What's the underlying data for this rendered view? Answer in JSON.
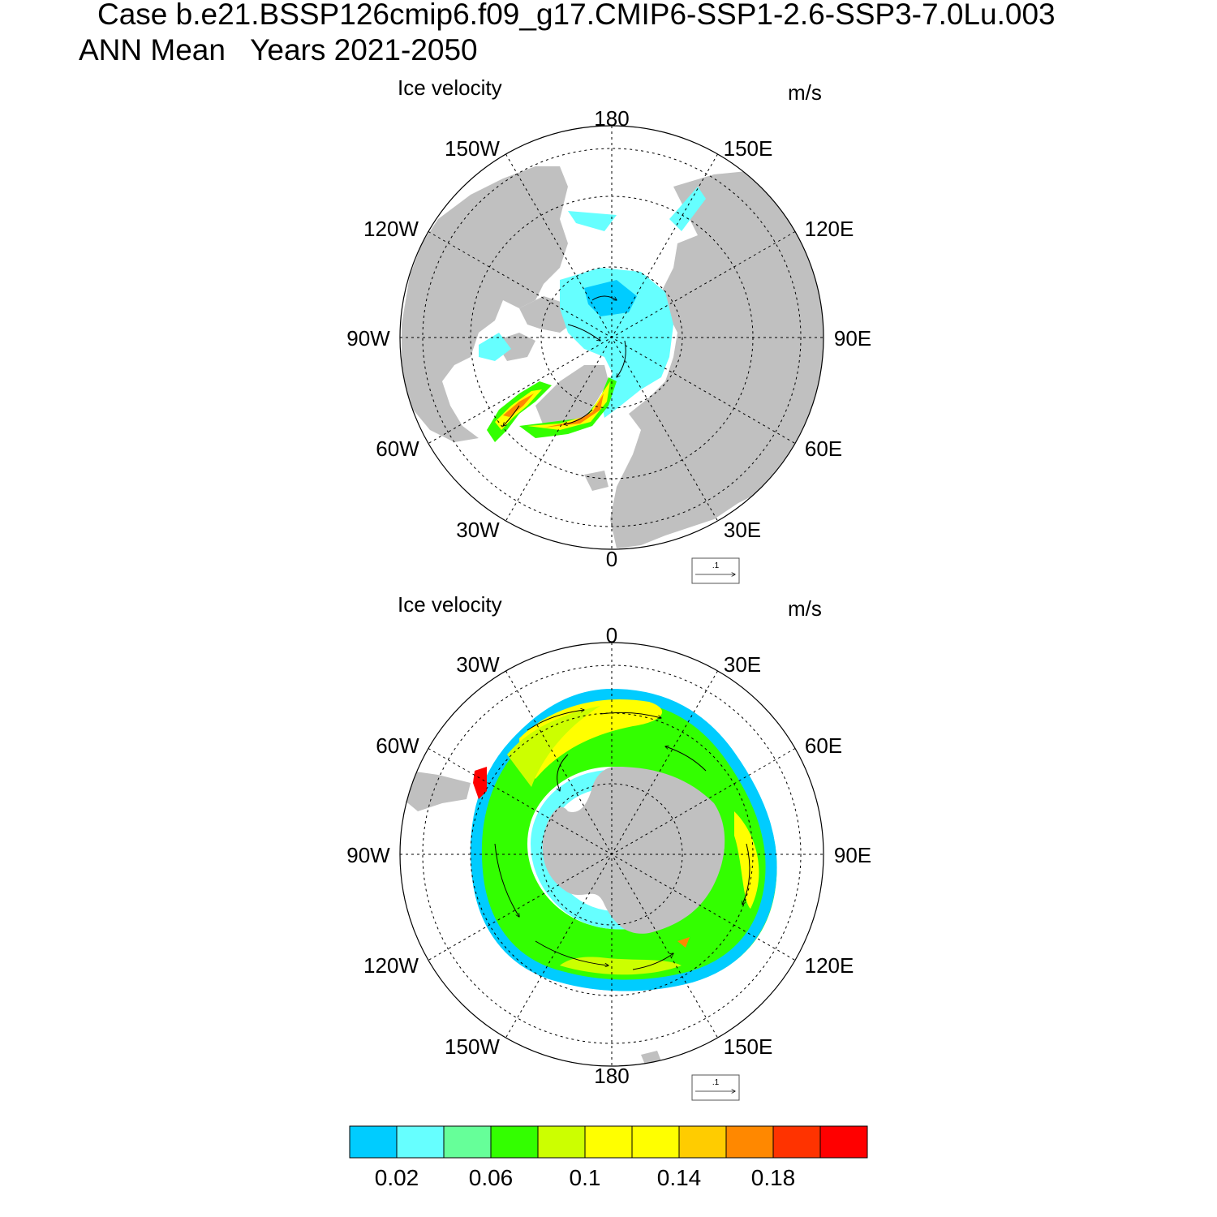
{
  "header": {
    "line1": "Case b.e21.BSSP126cmip6.f09_g17.CMIP6-SSP1-2.6-SSP3-7.0Lu.003",
    "line2": "ANN Mean   Years 2021-2050"
  },
  "panels": [
    {
      "id": "nh",
      "variable_label": "Ice velocity",
      "units_label": "m/s",
      "hemisphere": "north",
      "lon_labels": [
        "180",
        "150E",
        "120E",
        "90E",
        "60E",
        "30E",
        "0",
        "30W",
        "60W",
        "90W",
        "120W",
        "150W"
      ],
      "reference_vector_label": ".1"
    },
    {
      "id": "sh",
      "variable_label": "Ice velocity",
      "units_label": "m/s",
      "hemisphere": "south",
      "lon_labels": [
        "0",
        "30E",
        "60E",
        "90E",
        "120E",
        "150E",
        "180",
        "150W",
        "120W",
        "90W",
        "60W",
        "30W"
      ],
      "reference_vector_label": ".1"
    }
  ],
  "colorbar": {
    "colors": [
      "#00ccff",
      "#66ffff",
      "#66ff99",
      "#33ff00",
      "#ccff00",
      "#ffff00",
      "#ffff00",
      "#ffcc00",
      "#ff8800",
      "#ff3300",
      "#ff0000"
    ],
    "tick_labels": [
      "0.02",
      "0.06",
      "0.1",
      "0.14",
      "0.18"
    ]
  },
  "colors": {
    "land": "#c0c0c0",
    "ocean": "#ffffff"
  }
}
